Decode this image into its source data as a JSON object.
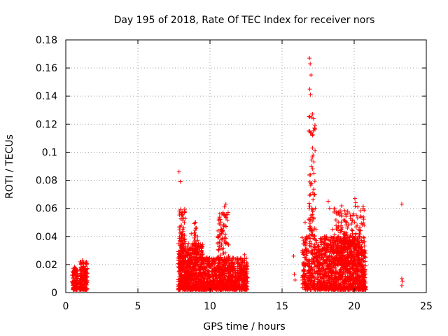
{
  "chart_data": {
    "type": "scatter",
    "title": "Day 195 of 2018, Rate Of TEC Index for receiver nors",
    "xlabel": "GPS time / hours",
    "ylabel": "ROTI / TECUs",
    "xlim": [
      0,
      25
    ],
    "ylim": [
      0,
      0.18
    ],
    "x_ticks": [
      0,
      5,
      10,
      15,
      20,
      25
    ],
    "x_tick_labels": [
      "0",
      "5",
      "10",
      "15",
      "20",
      "25"
    ],
    "y_ticks": [
      0,
      0.02,
      0.04,
      0.06,
      0.08,
      0.1,
      0.12,
      0.14,
      0.16,
      0.18
    ],
    "y_tick_labels": [
      "0",
      "0.02",
      "0.04",
      "0.06",
      "0.08",
      "0.1",
      "0.12",
      "0.14",
      "0.16",
      "0.18"
    ],
    "grid": true,
    "marker": "+",
    "color": "#ff0000",
    "series": [
      {
        "name": "ROTI",
        "points": [
          [
            0.5,
            0.005
          ],
          [
            0.55,
            0.012
          ],
          [
            0.6,
            0.018
          ],
          [
            0.65,
            0.008
          ],
          [
            0.7,
            0.015
          ],
          [
            0.75,
            0.003
          ],
          [
            0.8,
            0.01
          ],
          [
            1.0,
            0.006
          ],
          [
            1.05,
            0.02
          ],
          [
            1.1,
            0.014
          ],
          [
            1.15,
            0.023
          ],
          [
            1.2,
            0.009
          ],
          [
            1.25,
            0.018
          ],
          [
            1.3,
            0.004
          ],
          [
            1.35,
            0.016
          ],
          [
            1.45,
            0.011
          ],
          [
            7.85,
            0.086
          ],
          [
            7.9,
            0.01
          ],
          [
            7.95,
            0.079
          ],
          [
            8.0,
            0.03
          ],
          [
            8.05,
            0.057
          ],
          [
            8.1,
            0.045
          ],
          [
            8.15,
            0.02
          ],
          [
            8.2,
            0.008
          ],
          [
            8.3,
            0.025
          ],
          [
            8.4,
            0.015
          ],
          [
            8.5,
            0.035
          ],
          [
            8.6,
            0.018
          ],
          [
            8.7,
            0.042
          ],
          [
            8.8,
            0.012
          ],
          [
            8.9,
            0.028
          ],
          [
            9.0,
            0.05
          ],
          [
            9.05,
            0.046
          ],
          [
            9.1,
            0.022
          ],
          [
            9.2,
            0.033
          ],
          [
            9.3,
            0.009
          ],
          [
            9.4,
            0.018
          ],
          [
            9.6,
            0.014
          ],
          [
            9.8,
            0.025
          ],
          [
            10.0,
            0.006
          ],
          [
            10.2,
            0.02
          ],
          [
            10.4,
            0.011
          ],
          [
            10.6,
            0.03
          ],
          [
            10.8,
            0.045
          ],
          [
            10.9,
            0.056
          ],
          [
            11.0,
            0.061
          ],
          [
            11.1,
            0.063
          ],
          [
            11.2,
            0.035
          ],
          [
            11.4,
            0.015
          ],
          [
            11.6,
            0.024
          ],
          [
            11.8,
            0.008
          ],
          [
            12.0,
            0.02
          ],
          [
            12.2,
            0.013
          ],
          [
            12.4,
            0.027
          ],
          [
            12.5,
            0.01
          ],
          [
            15.8,
            0.026
          ],
          [
            15.85,
            0.013
          ],
          [
            15.9,
            0.009
          ],
          [
            16.6,
            0.05
          ],
          [
            16.7,
            0.04
          ],
          [
            16.8,
            0.02
          ],
          [
            16.9,
            0.167
          ],
          [
            16.95,
            0.163
          ],
          [
            17.0,
            0.155
          ],
          [
            16.92,
            0.145
          ],
          [
            16.97,
            0.141
          ],
          [
            17.05,
            0.125
          ],
          [
            17.1,
            0.112
          ],
          [
            17.15,
            0.098
          ],
          [
            17.2,
            0.085
          ],
          [
            17.25,
            0.07
          ],
          [
            17.3,
            0.06
          ],
          [
            17.35,
            0.045
          ],
          [
            17.4,
            0.03
          ],
          [
            17.5,
            0.015
          ],
          [
            17.7,
            0.02
          ],
          [
            17.9,
            0.01
          ],
          [
            18.1,
            0.03
          ],
          [
            18.2,
            0.065
          ],
          [
            18.3,
            0.06
          ],
          [
            18.5,
            0.045
          ],
          [
            18.7,
            0.025
          ],
          [
            18.9,
            0.04
          ],
          [
            19.1,
            0.045
          ],
          [
            19.3,
            0.03
          ],
          [
            19.5,
            0.05
          ],
          [
            19.7,
            0.015
          ],
          [
            19.9,
            0.035
          ],
          [
            20.05,
            0.067
          ],
          [
            20.1,
            0.064
          ],
          [
            20.15,
            0.055
          ],
          [
            20.2,
            0.048
          ],
          [
            20.3,
            0.025
          ],
          [
            20.4,
            0.04
          ],
          [
            20.5,
            0.012
          ],
          [
            20.6,
            0.02
          ],
          [
            23.3,
            0.063
          ],
          [
            23.3,
            0.01
          ],
          [
            23.35,
            0.008
          ],
          [
            23.3,
            0.005
          ]
        ],
        "dense_bands": [
          {
            "x0": 0.45,
            "x1": 0.85,
            "ymin": 0.002,
            "ymax": 0.018,
            "n": 120
          },
          {
            "x0": 0.95,
            "x1": 1.5,
            "ymin": 0.002,
            "ymax": 0.022,
            "n": 170
          },
          {
            "x0": 7.8,
            "x1": 9.5,
            "ymin": 0.002,
            "ymax": 0.035,
            "n": 700
          },
          {
            "x0": 7.85,
            "x1": 8.3,
            "ymin": 0.02,
            "ymax": 0.06,
            "n": 90
          },
          {
            "x0": 8.9,
            "x1": 9.15,
            "ymin": 0.02,
            "ymax": 0.05,
            "n": 45
          },
          {
            "x0": 9.5,
            "x1": 12.6,
            "ymin": 0.002,
            "ymax": 0.025,
            "n": 900
          },
          {
            "x0": 10.5,
            "x1": 11.3,
            "ymin": 0.015,
            "ymax": 0.058,
            "n": 110
          },
          {
            "x0": 16.4,
            "x1": 17.6,
            "ymin": 0.002,
            "ymax": 0.04,
            "n": 300
          },
          {
            "x0": 16.85,
            "x1": 17.3,
            "ymin": 0.04,
            "ymax": 0.13,
            "n": 70
          },
          {
            "x0": 17.6,
            "x1": 20.8,
            "ymin": 0.002,
            "ymax": 0.04,
            "n": 1200
          },
          {
            "x0": 18.6,
            "x1": 20.7,
            "ymin": 0.02,
            "ymax": 0.062,
            "n": 200
          }
        ]
      }
    ]
  }
}
